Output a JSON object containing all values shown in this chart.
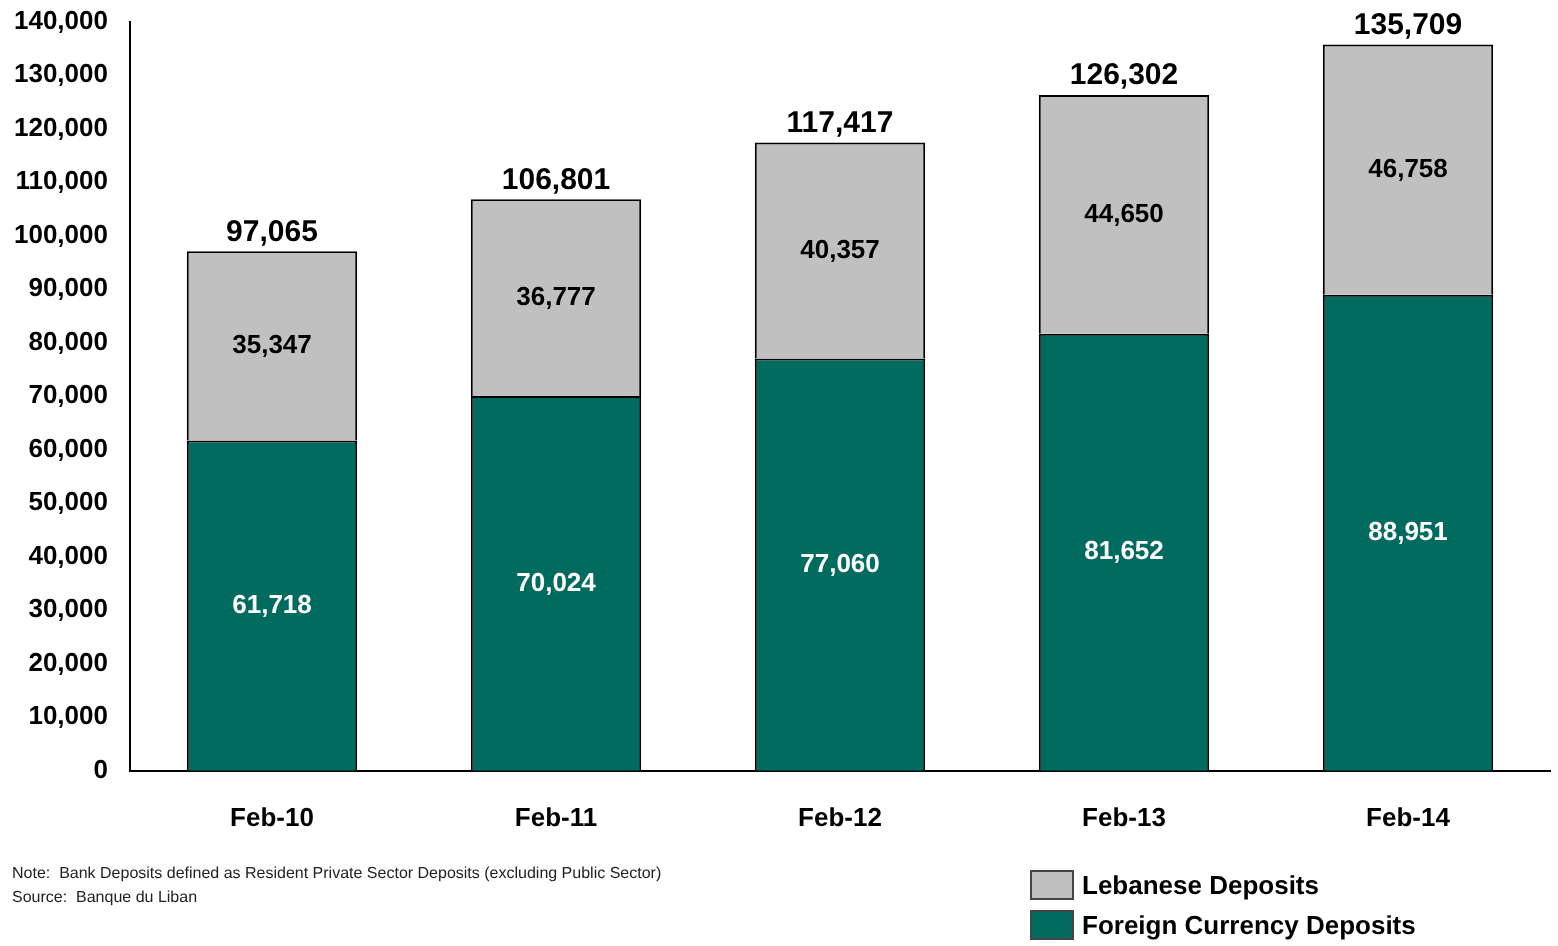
{
  "chart_data": {
    "type": "bar",
    "stacked": true,
    "categories": [
      "Feb-10",
      "Feb-11",
      "Feb-12",
      "Feb-13",
      "Feb-14"
    ],
    "series": [
      {
        "name": "Foreign Currency Deposits",
        "color": "#006b5e",
        "values": [
          61718,
          70024,
          77060,
          81652,
          88951
        ],
        "value_labels": [
          "61,718",
          "70,024",
          "77,060",
          "81,652",
          "88,951"
        ]
      },
      {
        "name": "Lebanese Deposits",
        "color": "#c0c0c0",
        "values": [
          35347,
          36777,
          40357,
          44650,
          46758
        ],
        "value_labels": [
          "35,347",
          "36,777",
          "40,357",
          "44,650",
          "46,758"
        ]
      }
    ],
    "totals": [
      "97,065",
      "106,801",
      "117,417",
      "126,302",
      "135,709"
    ],
    "grid": false,
    "legend": "bottom right",
    "ylim": [
      0,
      140000
    ],
    "yticks": [
      {
        "value": 0,
        "label": "0"
      },
      {
        "value": 10000,
        "label": "10,000"
      },
      {
        "value": 20000,
        "label": "20,000"
      },
      {
        "value": 30000,
        "label": "30,000"
      },
      {
        "value": 40000,
        "label": "40,000"
      },
      {
        "value": 50000,
        "label": "50,000"
      },
      {
        "value": 60000,
        "label": "60,000"
      },
      {
        "value": 70000,
        "label": "70,000"
      },
      {
        "value": 80000,
        "label": "80,000"
      },
      {
        "value": 90000,
        "label": "90,000"
      },
      {
        "value": 100000,
        "label": "100,000"
      },
      {
        "value": 110000,
        "label": "110,000"
      },
      {
        "value": 120000,
        "label": "120,000"
      },
      {
        "value": 130000,
        "label": "130,000"
      },
      {
        "value": 140000,
        "label": "140,000"
      }
    ],
    "annotations": [
      "Note:  Bank Deposits defined as Resident Private Sector Deposits (excluding Public Sector)",
      "Source:  Banque du Liban"
    ]
  }
}
